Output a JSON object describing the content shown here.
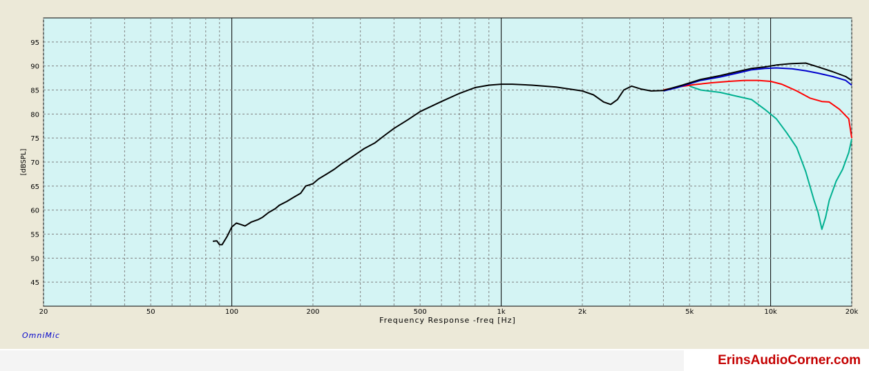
{
  "chart_data": {
    "type": "line",
    "xscale": "log",
    "xlim": [
      20,
      20000
    ],
    "ylim": [
      40,
      100
    ],
    "xlabel": "Frequency Response -freq [Hz]",
    "ylabel": "[dBSPL]",
    "watermark": "OmniMic",
    "xticks": [
      {
        "value": 20,
        "label": "20"
      },
      {
        "value": 50,
        "label": "50"
      },
      {
        "value": 100,
        "label": "100"
      },
      {
        "value": 200,
        "label": "200"
      },
      {
        "value": 500,
        "label": "500"
      },
      {
        "value": 1000,
        "label": "1k"
      },
      {
        "value": 2000,
        "label": "2k"
      },
      {
        "value": 5000,
        "label": "5k"
      },
      {
        "value": 10000,
        "label": "10k"
      },
      {
        "value": 20000,
        "label": "20k"
      }
    ],
    "yticks": [
      45,
      50,
      55,
      60,
      65,
      70,
      75,
      80,
      85,
      90,
      95
    ],
    "grid": true,
    "colors": {
      "plot_bg": "#d4f4f4",
      "frame_bg": "#ece9d8",
      "grid": "#808080",
      "decade": "#000000"
    },
    "series": [
      {
        "color": "#000000",
        "points": [
          [
            85,
            53.5
          ],
          [
            88,
            53.6
          ],
          [
            90,
            52.8
          ],
          [
            92,
            52.8
          ],
          [
            96,
            54.5
          ],
          [
            100,
            56.5
          ],
          [
            104,
            57.3
          ],
          [
            108,
            57.0
          ],
          [
            112,
            56.7
          ],
          [
            118,
            57.5
          ],
          [
            125,
            58.0
          ],
          [
            130,
            58.5
          ],
          [
            137,
            59.5
          ],
          [
            145,
            60.3
          ],
          [
            150,
            61.0
          ],
          [
            160,
            61.8
          ],
          [
            170,
            62.7
          ],
          [
            180,
            63.5
          ],
          [
            188,
            65.0
          ],
          [
            200,
            65.5
          ],
          [
            210,
            66.5
          ],
          [
            225,
            67.5
          ],
          [
            240,
            68.5
          ],
          [
            255,
            69.6
          ],
          [
            270,
            70.5
          ],
          [
            290,
            71.7
          ],
          [
            310,
            72.8
          ],
          [
            340,
            74.0
          ],
          [
            370,
            75.6
          ],
          [
            400,
            77.0
          ],
          [
            450,
            78.8
          ],
          [
            500,
            80.5
          ],
          [
            600,
            82.6
          ],
          [
            700,
            84.3
          ],
          [
            800,
            85.5
          ],
          [
            900,
            86.0
          ],
          [
            1000,
            86.2
          ],
          [
            1100,
            86.2
          ],
          [
            1300,
            86.0
          ],
          [
            1600,
            85.6
          ],
          [
            2000,
            84.8
          ],
          [
            2200,
            84.0
          ],
          [
            2400,
            82.5
          ],
          [
            2550,
            82.0
          ],
          [
            2700,
            83.0
          ],
          [
            2850,
            85.0
          ],
          [
            3050,
            85.8
          ],
          [
            3300,
            85.2
          ],
          [
            3600,
            84.8
          ],
          [
            4000,
            84.9
          ],
          [
            4300,
            85.4
          ],
          [
            4700,
            86.0
          ],
          [
            5500,
            87.2
          ],
          [
            6500,
            88.0
          ],
          [
            7500,
            88.8
          ],
          [
            8500,
            89.5
          ],
          [
            9500,
            89.8
          ],
          [
            10500,
            90.2
          ],
          [
            12000,
            90.5
          ],
          [
            13500,
            90.6
          ],
          [
            15000,
            89.8
          ],
          [
            17000,
            88.8
          ],
          [
            19000,
            87.8
          ],
          [
            20000,
            87.0
          ]
        ]
      },
      {
        "color": "#0000cc",
        "points": [
          [
            4000,
            84.8
          ],
          [
            4500,
            85.5
          ],
          [
            5500,
            87.0
          ],
          [
            6500,
            87.7
          ],
          [
            7500,
            88.5
          ],
          [
            8500,
            89.2
          ],
          [
            9500,
            89.5
          ],
          [
            10500,
            89.6
          ],
          [
            12000,
            89.4
          ],
          [
            13500,
            89.0
          ],
          [
            15000,
            88.5
          ],
          [
            17000,
            87.8
          ],
          [
            19000,
            87.0
          ],
          [
            20000,
            86.0
          ]
        ]
      },
      {
        "color": "#ff0000",
        "points": [
          [
            4000,
            85.0
          ],
          [
            4500,
            85.6
          ],
          [
            5200,
            86.1
          ],
          [
            6000,
            86.5
          ],
          [
            7000,
            86.8
          ],
          [
            8000,
            87.0
          ],
          [
            9000,
            87.0
          ],
          [
            10000,
            86.8
          ],
          [
            11000,
            86.2
          ],
          [
            12500,
            84.8
          ],
          [
            14000,
            83.3
          ],
          [
            15500,
            82.6
          ],
          [
            16500,
            82.5
          ],
          [
            18000,
            81.0
          ],
          [
            19500,
            79.0
          ],
          [
            20000,
            75.0
          ]
        ]
      },
      {
        "color": "#00b090",
        "points": [
          [
            5000,
            85.8
          ],
          [
            5500,
            85.0
          ],
          [
            6500,
            84.5
          ],
          [
            7500,
            83.7
          ],
          [
            8500,
            83.0
          ],
          [
            9500,
            81.0
          ],
          [
            10500,
            79.0
          ],
          [
            11500,
            76.0
          ],
          [
            12500,
            73.0
          ],
          [
            13500,
            68.0
          ],
          [
            14500,
            62.0
          ],
          [
            15000,
            59.5
          ],
          [
            15500,
            56.0
          ],
          [
            16000,
            58.5
          ],
          [
            16500,
            62.0
          ],
          [
            17500,
            66.0
          ],
          [
            18500,
            68.5
          ],
          [
            19500,
            72.0
          ],
          [
            20000,
            74.8
          ]
        ]
      }
    ]
  },
  "brand": {
    "site": "ErinsAudioCorner.com"
  }
}
